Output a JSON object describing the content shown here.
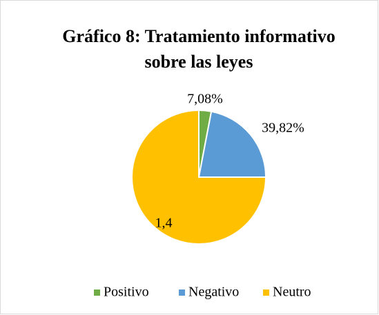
{
  "chart_data": {
    "type": "pie",
    "title": "Gráfico 8: Tratamiento informativo sobre las leyes",
    "categories": [
      "Positivo",
      "Negativo",
      "Neutro"
    ],
    "values": [
      3,
      22,
      75
    ],
    "colors": [
      "#70ad47",
      "#5b9bd5",
      "#ffc000"
    ],
    "annotations": [
      "7,08%",
      "39,82%",
      "1,4"
    ],
    "legend": "bottom"
  }
}
